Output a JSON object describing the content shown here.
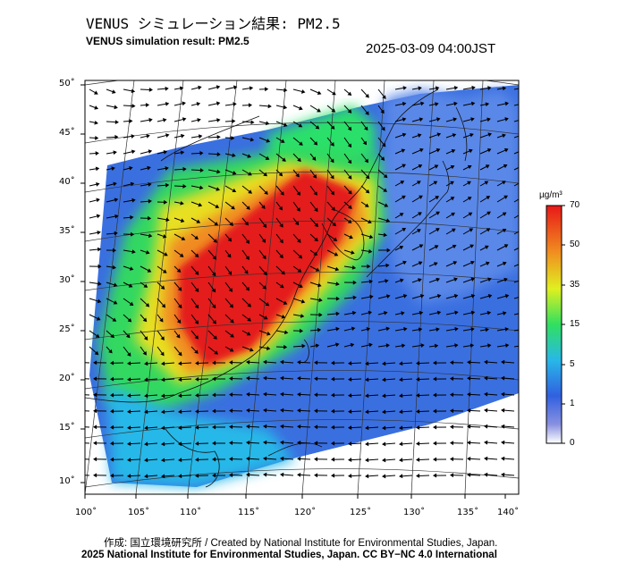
{
  "header": {
    "title_jp": "VENUS シミュレーション結果: PM2.5",
    "title_en": "VENUS simulation result: PM2.5",
    "timestamp": "2025-03-09 04:00JST"
  },
  "map": {
    "latitude_labels": [
      "50˚",
      "45˚",
      "40˚",
      "35˚",
      "30˚",
      "25˚",
      "20˚",
      "15˚",
      "10˚"
    ],
    "longitude_labels": [
      "100˚",
      "105˚",
      "110˚",
      "115˚",
      "120˚",
      "125˚",
      "130˚",
      "135˚",
      "140˚"
    ],
    "field": "PM2.5 concentration with wind vectors",
    "high_concentration_region": "Eastern China"
  },
  "colorbar": {
    "unit": "µg/m³",
    "labels": [
      "70",
      "50",
      "35",
      "15",
      "5",
      "1",
      "0"
    ],
    "colors": [
      "#ffffff",
      "#6f7fde",
      "#2f6fe0",
      "#28c0e8",
      "#2ce06a",
      "#e8f020",
      "#f0a020",
      "#e82020"
    ]
  },
  "footer": {
    "credit_line": "作成: 国立環境研究所 / Created by National Institute for Environmental Studies, Japan.",
    "license_line": "2025 National Institute for Environmental Studies, Japan. CC BY−NC 4.0 International"
  }
}
